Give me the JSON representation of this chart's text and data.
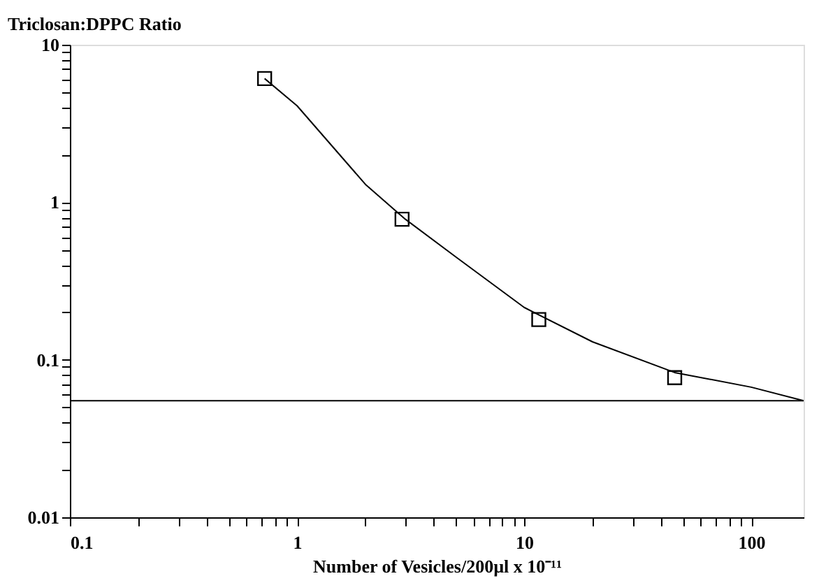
{
  "chart_data": {
    "type": "scatter",
    "ylabel": "Triclosan:DPPC Ratio",
    "xlabel": "Number of Vesicles/200µl x 10⁻¹¹",
    "log": "xy",
    "grid": false,
    "legend": false,
    "xlim": [
      0.1,
      170
    ],
    "ylim": [
      0.01,
      10
    ],
    "xticks": [
      0.1,
      {
        "value": 0.2,
        "label": null
      },
      {
        "value": 0.3,
        "label": null
      },
      {
        "value": 0.4,
        "label": null
      },
      {
        "value": 0.5,
        "label": null
      },
      {
        "value": 0.6,
        "label": null
      },
      {
        "value": 0.7,
        "label": null
      },
      {
        "value": 0.8,
        "label": null
      },
      {
        "value": 0.9,
        "label": null
      },
      1,
      {
        "value": 2,
        "label": null
      },
      {
        "value": 3,
        "label": null
      },
      {
        "value": 4,
        "label": null
      },
      {
        "value": 5,
        "label": null
      },
      {
        "value": 6,
        "label": null
      },
      {
        "value": 7,
        "label": null
      },
      {
        "value": 8,
        "label": null
      },
      {
        "value": 9,
        "label": null
      },
      10,
      {
        "value": 20,
        "label": null
      },
      {
        "value": 30,
        "label": null
      },
      {
        "value": 40,
        "label": null
      },
      {
        "value": 50,
        "label": null
      },
      {
        "value": 60,
        "label": null
      },
      {
        "value": 70,
        "label": null
      },
      {
        "value": 80,
        "label": null
      },
      {
        "value": 90,
        "label": null
      },
      100
    ],
    "yticks": [
      0.01,
      {
        "value": 0.02,
        "label": null
      },
      {
        "value": 0.03,
        "label": null
      },
      {
        "value": 0.04,
        "label": null
      },
      {
        "value": 0.05,
        "label": null
      },
      {
        "value": 0.06,
        "label": null
      },
      {
        "value": 0.07,
        "label": null
      },
      {
        "value": 0.08,
        "label": null
      },
      {
        "value": 0.09,
        "label": null
      },
      0.1,
      {
        "value": 0.2,
        "label": null
      },
      {
        "value": 0.3,
        "label": null
      },
      {
        "value": 0.4,
        "label": null
      },
      {
        "value": 0.5,
        "label": null
      },
      {
        "value": 0.6,
        "label": null
      },
      {
        "value": 0.7,
        "label": null
      },
      {
        "value": 0.8,
        "label": null
      },
      {
        "value": 0.9,
        "label": null
      },
      1,
      {
        "value": 2,
        "label": null
      },
      {
        "value": 3,
        "label": null
      },
      {
        "value": 4,
        "label": null
      },
      {
        "value": 5,
        "label": null
      },
      {
        "value": 6,
        "label": null
      },
      {
        "value": 7,
        "label": null
      },
      {
        "value": 8,
        "label": null
      },
      {
        "value": 9,
        "label": null
      },
      10
    ],
    "series": [
      {
        "marker": "square",
        "color": "#000000",
        "x": [
          0.72,
          2.9,
          11.6,
          46
        ],
        "values": [
          6.1,
          0.78,
          0.18,
          0.077
        ]
      },
      {
        "type": "line",
        "marker": "none",
        "line_style": "solid",
        "color": "#000000",
        "x": [
          0.72,
          1,
          2,
          3,
          5,
          10,
          20,
          46,
          100,
          170
        ],
        "values": [
          6.1,
          4.1,
          1.3,
          0.78,
          0.45,
          0.215,
          0.13,
          0.083,
          0.067,
          0.055
        ]
      }
    ],
    "ref_lines": [
      {
        "axis": "y",
        "value": 0.055,
        "color": "#000000",
        "line_style": "solid"
      }
    ]
  }
}
